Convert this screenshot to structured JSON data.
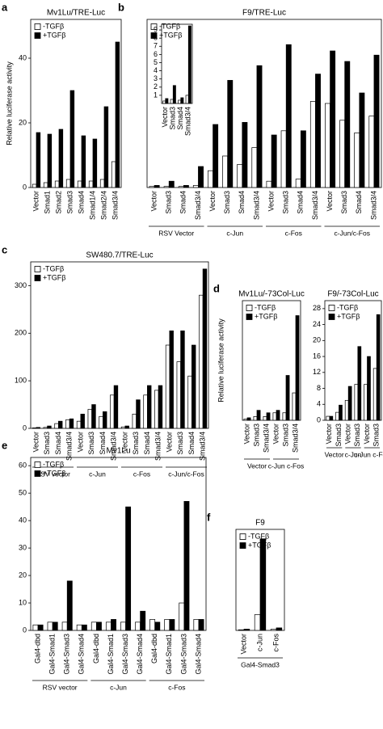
{
  "chart_data": [
    {
      "type": "bar",
      "panel": "a",
      "title": "Mv1Lu/TRE-Luc",
      "ylabel": "Relative luciferase activity",
      "legend": "upper left",
      "categories": [
        "Vector",
        "Smad1",
        "Smad2",
        "Smad3",
        "Smad4",
        "Smad1/4",
        "Smad2/4",
        "Smad3/4"
      ],
      "series": [
        {
          "name": "-TGFβ",
          "color": "#ffffff",
          "values": [
            1,
            1.5,
            2,
            2.5,
            2,
            2,
            2.5,
            8
          ]
        },
        {
          "name": "+TGFβ",
          "color": "#000000",
          "values": [
            17,
            16.5,
            18,
            30,
            16,
            15,
            25,
            45
          ]
        }
      ],
      "ylim": [
        0,
        52
      ],
      "yticks": [
        0,
        20,
        40
      ]
    },
    {
      "type": "bar",
      "panel": "b",
      "title": "F9/TRE-Luc",
      "legend": "upper left",
      "groups": [
        {
          "label": "RSV Vector",
          "categories": [
            "Vector",
            "Smad3",
            "Smad4",
            "Smad3/4"
          ]
        },
        {
          "label": "c-Jun",
          "categories": [
            "Vector",
            "Smad3",
            "Smad4",
            "Smad3/4"
          ]
        },
        {
          "label": "c-Fos",
          "categories": [
            "Vector",
            "Smad3",
            "Smad4",
            "Smad3/4"
          ]
        },
        {
          "label": "c-Jun/c-Fos",
          "categories": [
            "Vector",
            "Smad3",
            "Smad4",
            "Smad3/4"
          ]
        }
      ],
      "series": [
        {
          "name": "-TGFβ",
          "color": "#ffffff",
          "values": [
            0.5,
            0.5,
            0.5,
            1,
            8,
            15,
            11,
            19,
            3,
            27,
            4,
            41,
            40,
            32,
            26,
            34
          ]
        },
        {
          "name": "+TGFβ",
          "color": "#000000",
          "values": [
            1,
            3,
            1,
            10,
            30,
            51,
            31,
            58,
            25,
            68,
            27,
            54,
            65,
            60,
            45,
            63
          ]
        }
      ],
      "ylim": [
        0,
        80
      ]
    },
    {
      "type": "bar",
      "categories": [
        "Vector",
        "Smad3",
        "Smad4",
        "Smad3/4"
      ],
      "series": [
        {
          "color": "#ffffff",
          "values": [
            0.3,
            0.5,
            0.4,
            1
          ]
        },
        {
          "color": "#000000",
          "values": [
            0.6,
            2.2,
            0.7,
            9.5
          ]
        }
      ],
      "ylim": [
        0,
        9.7
      ],
      "yticks": [
        1,
        2,
        3,
        4,
        5,
        6,
        7,
        8,
        9
      ]
    },
    {
      "type": "bar",
      "panel": "c",
      "title": "SW480.7/TRE-Luc",
      "legend": "upper left",
      "groups": [
        {
          "label": "RSV vector",
          "categories": [
            "Vector",
            "Smad3",
            "Smad4",
            "Smad3/4"
          ]
        },
        {
          "label": "c-Jun",
          "categories": [
            "Vector",
            "Smad3",
            "Smad4",
            "Smad3/4"
          ]
        },
        {
          "label": "c-Fos",
          "categories": [
            "Vector",
            "Smad3",
            "Smad4",
            "Smad3/4"
          ]
        },
        {
          "label": "c-Jun/c-Fos",
          "categories": [
            "Vector",
            "Smad3",
            "Smad4",
            "Smad3/4"
          ]
        }
      ],
      "series": [
        {
          "name": "-TGFβ",
          "color": "#ffffff",
          "values": [
            1,
            2,
            10,
            18,
            15,
            40,
            25,
            70,
            3,
            30,
            70,
            80,
            175,
            140,
            110,
            280
          ]
        },
        {
          "name": "+TGFβ",
          "color": "#000000",
          "values": [
            2,
            5,
            15,
            20,
            30,
            50,
            35,
            90,
            5,
            60,
            90,
            90,
            205,
            205,
            175,
            335
          ]
        }
      ],
      "ylim": [
        0,
        350
      ],
      "yticks": [
        0,
        100,
        200,
        300
      ]
    },
    {
      "type": "bar",
      "panel": "d",
      "title": "Mv1Lu/-73Col-Luc",
      "ylabel": "Relative luciferase activity",
      "legend": "upper left",
      "groups": [
        {
          "label": "Vector",
          "categories": [
            "Vector",
            "Smad3",
            "Smad3/4"
          ]
        },
        {
          "label": "c-Jun c-Fos",
          "categories": [
            "Vector",
            "Smad3",
            "Smad3/4"
          ]
        }
      ],
      "series": [
        {
          "name": "-TGFβ",
          "color": "#ffffff",
          "values": [
            5,
            15,
            15,
            30,
            30,
            110
          ]
        },
        {
          "name": "+TGFβ",
          "color": "#000000",
          "values": [
            10,
            40,
            30,
            40,
            180,
            420
          ]
        }
      ],
      "ylim": [
        0,
        480
      ]
    },
    {
      "type": "bar",
      "title": "F9/-73Col-Luc",
      "legend": "upper left",
      "groups": [
        {
          "label": "Vector",
          "categories": [
            "Vector",
            "Smad3"
          ]
        },
        {
          "label": "c-Jun",
          "categories": [
            "Vector",
            "Smad3"
          ]
        },
        {
          "label": "c-Jun c-Fos",
          "categories": [
            "Vector",
            "Smad3"
          ]
        }
      ],
      "series": [
        {
          "name": "-TGFβ",
          "color": "#ffffff",
          "values": [
            1,
            2,
            5,
            9,
            9,
            13
          ]
        },
        {
          "name": "+TGFβ",
          "color": "#000000",
          "values": [
            1,
            3.8,
            8.5,
            18.5,
            16,
            26.5
          ]
        }
      ],
      "ylim": [
        0,
        30
      ],
      "yticks": [
        0,
        4,
        8,
        12,
        16,
        20,
        24,
        28
      ]
    },
    {
      "type": "bar",
      "panel": "e",
      "title": "Mv1Lu",
      "legend": "upper left",
      "groups": [
        {
          "label": "RSV vector",
          "categories": [
            "Gal4-dbd",
            "Gal4-Smad1",
            "Gal4-Smad3",
            "Gal4-Smad4"
          ]
        },
        {
          "label": "c-Jun",
          "categories": [
            "Gal4-dbd",
            "Gal4-Smad1",
            "Gal4-Smad3",
            "Gal4-Smad4"
          ]
        },
        {
          "label": "c-Fos",
          "categories": [
            "Gal4-dbd",
            "Gal4-Smad1",
            "Gal4-Smad3",
            "Gal4-Smad4"
          ]
        }
      ],
      "series": [
        {
          "name": "-TGFβ",
          "color": "#ffffff",
          "values": [
            2,
            3,
            3,
            2,
            3,
            3,
            3,
            3,
            4,
            4,
            10,
            4
          ]
        },
        {
          "name": "+TGFβ",
          "color": "#000000",
          "values": [
            2,
            3,
            18,
            2,
            3,
            4,
            45,
            7,
            3,
            4,
            47,
            4
          ]
        }
      ],
      "ylim": [
        0,
        63
      ],
      "yticks": [
        0,
        10,
        20,
        30,
        40,
        50,
        60
      ]
    },
    {
      "type": "bar",
      "panel": "f",
      "title": "F9",
      "legend": "upper left",
      "groups": [
        {
          "label": "Gal4-Smad3",
          "categories": [
            "Vector",
            "c-Jun",
            "c-Fos"
          ]
        }
      ],
      "series": [
        {
          "name": "-TGFβ",
          "color": "#ffffff",
          "values": [
            1,
            25,
            2
          ]
        },
        {
          "name": "+TGFβ",
          "color": "#000000",
          "values": [
            2,
            145,
            4
          ]
        }
      ],
      "ylim": [
        0,
        160
      ]
    }
  ]
}
